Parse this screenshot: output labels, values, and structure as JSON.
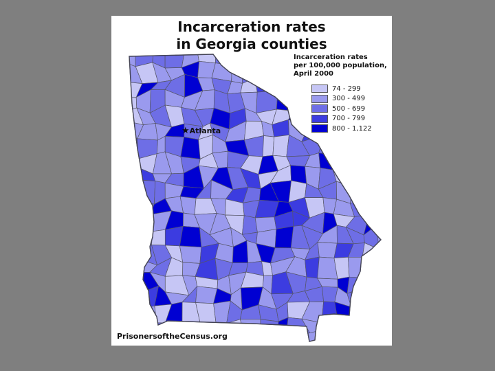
{
  "title": {
    "line1": "Incarceration rates",
    "line2": "in Georgia counties"
  },
  "legend": {
    "title_line1": "Incarceration rates",
    "title_line2": "per 100,000 population,",
    "title_line3": "April 2000",
    "items": [
      {
        "label": "74 - 299",
        "color": "#c6c6f5"
      },
      {
        "label": "300 - 499",
        "color": "#9a9aee"
      },
      {
        "label": "500 - 699",
        "color": "#6e6ee6"
      },
      {
        "label": "700 - 799",
        "color": "#3c3ce0"
      },
      {
        "label": "800 - 1,122",
        "color": "#0000d2"
      }
    ]
  },
  "city": {
    "marker": "★",
    "name": "Atlanta"
  },
  "source": "PrisonersoftheCensus.org",
  "colors": {
    "background": "#7f7f7f",
    "border": "#555566"
  }
}
